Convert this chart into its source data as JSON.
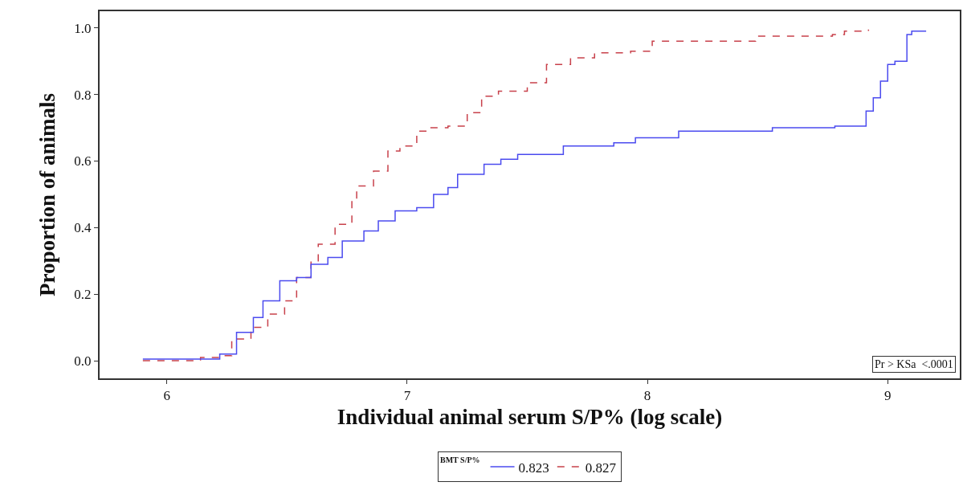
{
  "chart_data": {
    "type": "step",
    "xlabel": "Individual animal serum S/P% (log scale)",
    "ylabel": "Proportion of animals",
    "legend_title": "BMT S/P%",
    "legend": "bottom",
    "grid": false,
    "xlim": [
      5.72,
      9.3
    ],
    "xticks": [
      6,
      7,
      8,
      9
    ],
    "ylim": [
      -0.053,
      1.05
    ],
    "yticks": [
      {
        "value": 0,
        "label": "0.0"
      },
      {
        "value": 0.2,
        "label": "0.2"
      },
      {
        "value": 0.4,
        "label": "0.4"
      },
      {
        "value": 0.6,
        "label": "0.6"
      },
      {
        "value": 0.8,
        "label": "0.8"
      },
      {
        "value": 1,
        "label": "1.0"
      }
    ],
    "annotations": [
      "Pr > KSa  <.0001"
    ],
    "series": [
      {
        "name": "0.823",
        "color": "#4b4bef",
        "line_style": "solid",
        "x": [
          5.9,
          6.15,
          6.22,
          6.29,
          6.36,
          6.4,
          6.47,
          6.54,
          6.6,
          6.67,
          6.73,
          6.82,
          6.88,
          6.95,
          7.04,
          7.11,
          7.17,
          7.21,
          7.32,
          7.39,
          7.46,
          7.56,
          7.65,
          7.86,
          7.95,
          8.13,
          8.52,
          8.78,
          8.91,
          8.94,
          8.97,
          9.0,
          9.03,
          9.08,
          9.1,
          9.16
        ],
        "values": [
          0.005,
          0.005,
          0.02,
          0.085,
          0.13,
          0.18,
          0.24,
          0.25,
          0.29,
          0.31,
          0.36,
          0.39,
          0.42,
          0.45,
          0.46,
          0.5,
          0.52,
          0.56,
          0.59,
          0.605,
          0.62,
          0.62,
          0.645,
          0.655,
          0.67,
          0.69,
          0.7,
          0.705,
          0.75,
          0.79,
          0.84,
          0.89,
          0.9,
          0.98,
          0.99,
          0.99
        ]
      },
      {
        "name": "0.827",
        "color": "#c8414b",
        "line_style": "dashed",
        "x": [
          5.9,
          6.06,
          6.14,
          6.23,
          6.27,
          6.35,
          6.42,
          6.49,
          6.54,
          6.6,
          6.63,
          6.7,
          6.77,
          6.79,
          6.86,
          6.92,
          6.97,
          7.04,
          7.09,
          7.17,
          7.25,
          7.31,
          7.38,
          7.5,
          7.58,
          7.68,
          7.78,
          7.93,
          8.02,
          8.45,
          8.77,
          8.82,
          8.92
        ],
        "values": [
          0.0,
          0.0,
          0.01,
          0.015,
          0.065,
          0.1,
          0.14,
          0.18,
          0.25,
          0.3,
          0.35,
          0.41,
          0.48,
          0.525,
          0.57,
          0.63,
          0.645,
          0.69,
          0.7,
          0.705,
          0.745,
          0.795,
          0.81,
          0.835,
          0.89,
          0.91,
          0.925,
          0.93,
          0.96,
          0.975,
          0.98,
          0.99,
          0.995
        ]
      }
    ]
  }
}
